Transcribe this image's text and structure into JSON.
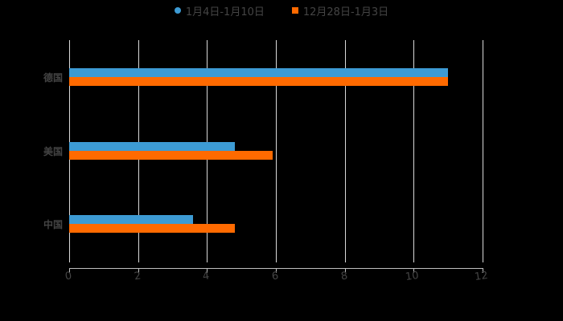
{
  "chart_data": {
    "type": "bar",
    "orientation": "horizontal",
    "title": "",
    "xlabel": "",
    "ylabel": "",
    "categories": [
      "德国",
      "美国",
      "中国"
    ],
    "series": [
      {
        "name": "1月4日-1月10日",
        "color": "#3d9bd4",
        "values": [
          11,
          4.8,
          3.6
        ]
      },
      {
        "name": "12月28日-1月3日",
        "color": "#ff6a00",
        "values": [
          11,
          5.9,
          4.8
        ]
      }
    ],
    "xlim": [
      0,
      12
    ],
    "x_ticks": [
      "0",
      "2",
      "4",
      "6",
      "8",
      "10",
      "12"
    ],
    "grid": true,
    "legend_position": "top"
  },
  "legend": {
    "items": [
      {
        "label": "1月4日-1月10日",
        "color": "#3d9bd4",
        "marker": "circle"
      },
      {
        "label": "12月28日-1月3日",
        "color": "#ff6a00",
        "marker": "square"
      }
    ]
  },
  "colors": {
    "background": "#000000",
    "text": "#444444",
    "grid": "#d9d9d9",
    "axis": "#bfbfbf"
  }
}
